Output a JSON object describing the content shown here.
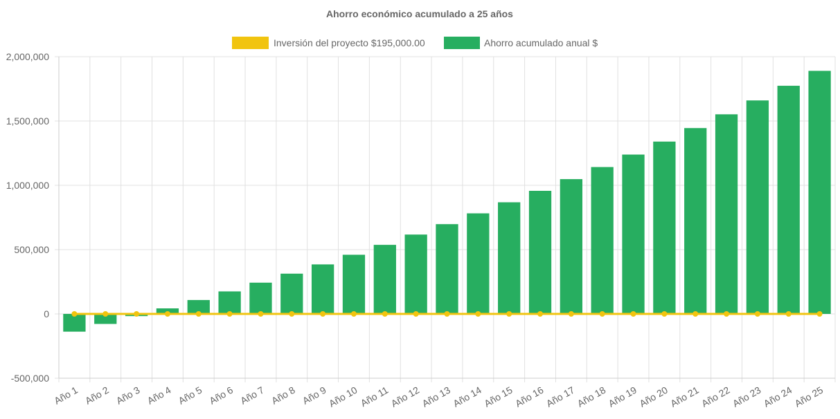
{
  "chart_data": {
    "type": "bar",
    "title": "Ahorro económico acumulado a 25 años",
    "xlabel": "",
    "ylabel": "",
    "ylim": [
      -500000,
      2000000
    ],
    "yticks": [
      "2,000,000",
      "1,500,000",
      "1,000,000",
      "500,000",
      "0",
      "-500,000"
    ],
    "ytick_values": [
      2000000,
      1500000,
      1000000,
      500000,
      0,
      -500000
    ],
    "grid": true,
    "legend_position": "top",
    "categories": [
      "Año 1",
      "Año 2",
      "Año 3",
      "Año 4",
      "Año 5",
      "Año 6",
      "Año 7",
      "Año 8",
      "Año 9",
      "Año 10",
      "Año 11",
      "Año 12",
      "Año 13",
      "Año 14",
      "Año 15",
      "Año 16",
      "Año 17",
      "Año 18",
      "Año 19",
      "Año 20",
      "Año 21",
      "Año 22",
      "Año 23",
      "Año 24",
      "Año 25"
    ],
    "series": [
      {
        "name": "Inversión del proyecto $195,000.00",
        "type": "line",
        "color": "#f1c40f",
        "values": [
          0,
          0,
          0,
          0,
          0,
          0,
          0,
          0,
          0,
          0,
          0,
          0,
          0,
          0,
          0,
          0,
          0,
          0,
          0,
          0,
          0,
          0,
          0,
          0,
          0
        ]
      },
      {
        "name": "Ahorro acumulado anual $",
        "type": "bar",
        "color": "#27ae60",
        "values": [
          -138000,
          -78000,
          -17000,
          43000,
          108000,
          175000,
          243000,
          313000,
          385000,
          460000,
          537000,
          617000,
          698000,
          782000,
          868000,
          957000,
          1048000,
          1142000,
          1239000,
          1340000,
          1445000,
          1552000,
          1660000,
          1774000,
          1890000
        ]
      }
    ]
  }
}
